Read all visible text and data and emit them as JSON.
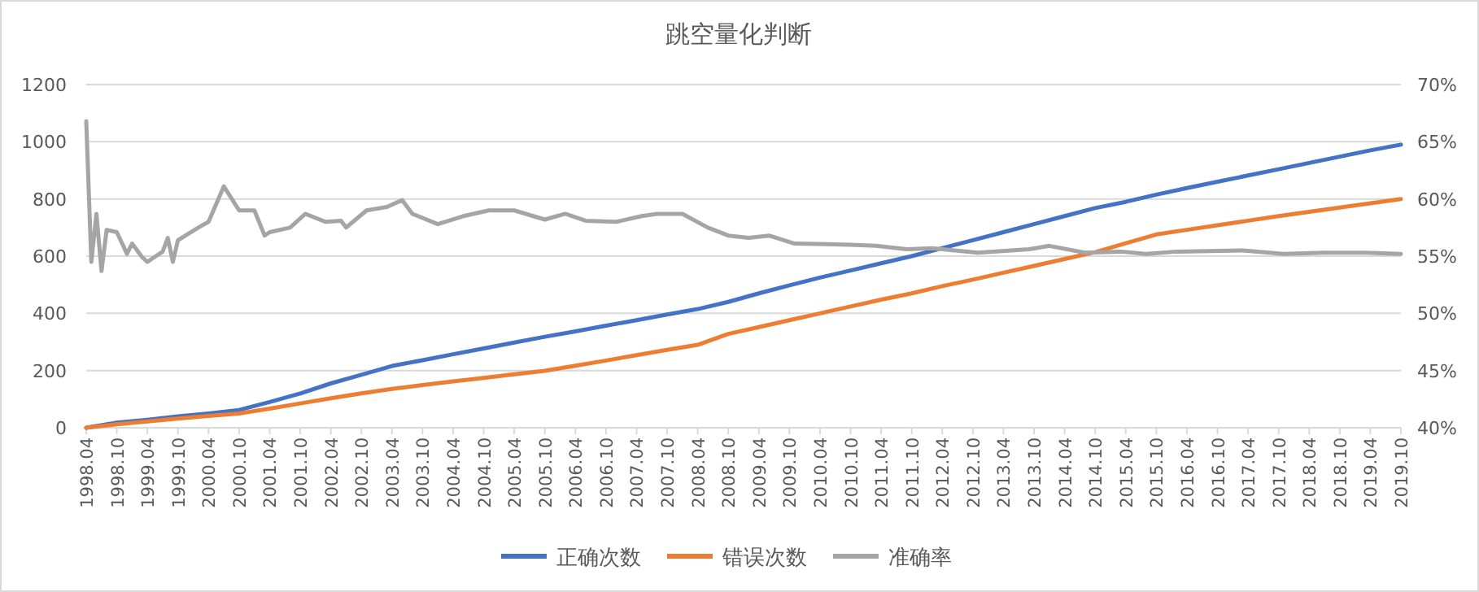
{
  "chart_data": {
    "type": "line",
    "title": "跳空量化判断",
    "x": [
      "1998-04",
      "1998-10",
      "1999-04",
      "1999-10",
      "2000-04",
      "2000-10",
      "2001-04",
      "2001-10",
      "2002-04",
      "2002-10",
      "2003-04",
      "2003-10",
      "2004-04",
      "2004-10",
      "2005-04",
      "2005-10",
      "2006-04",
      "2006-10",
      "2007-04",
      "2007-10",
      "2008-04",
      "2008-10",
      "2009-04",
      "2009-10",
      "2010-04",
      "2010-10",
      "2011-04",
      "2011-10",
      "2012-04",
      "2012-10",
      "2013-04",
      "2013-10",
      "2014-04",
      "2014-10",
      "2015-04",
      "2015-10",
      "2016-04",
      "2016-10",
      "2017-04",
      "2017-10",
      "2018-04",
      "2018-10",
      "2019-04",
      "2019-10"
    ],
    "xlim": [
      "1998-04",
      "2019-10"
    ],
    "xticks": [
      {
        "value": "1998-04",
        "label": "1998.04"
      },
      {
        "value": "1998-10",
        "label": "1998.10"
      },
      {
        "value": "1999-04",
        "label": "1999.04"
      },
      {
        "value": "1999-10",
        "label": "1999.10"
      },
      {
        "value": "2000-04",
        "label": "2000.04"
      },
      {
        "value": "2000-10",
        "label": "2000.10"
      },
      {
        "value": "2001-04",
        "label": "2001.04"
      },
      {
        "value": "2001-10",
        "label": "2001.10"
      },
      {
        "value": "2002-04",
        "label": "2002.04"
      },
      {
        "value": "2002-10",
        "label": "2002.10"
      },
      {
        "value": "2003-04",
        "label": "2003.04"
      },
      {
        "value": "2003-10",
        "label": "2003.10"
      },
      {
        "value": "2004-04",
        "label": "2004.04"
      },
      {
        "value": "2004-10",
        "label": "2004.10"
      },
      {
        "value": "2005-04",
        "label": "2005.04"
      },
      {
        "value": "2005-10",
        "label": "2005.10"
      },
      {
        "value": "2006-04",
        "label": "2006.04"
      },
      {
        "value": "2006-10",
        "label": "2006.10"
      },
      {
        "value": "2007-04",
        "label": "2007.04"
      },
      {
        "value": "2007-10",
        "label": "2007.10"
      },
      {
        "value": "2008-04",
        "label": "2008.04"
      },
      {
        "value": "2008-10",
        "label": "2008.10"
      },
      {
        "value": "2009-04",
        "label": "2009.04"
      },
      {
        "value": "2009-10",
        "label": "2009.10"
      },
      {
        "value": "2010-04",
        "label": "2010.04"
      },
      {
        "value": "2010-10",
        "label": "2010.10"
      },
      {
        "value": "2011-04",
        "label": "2011.04"
      },
      {
        "value": "2011-10",
        "label": "2011.10"
      },
      {
        "value": "2012-04",
        "label": "2012.04"
      },
      {
        "value": "2012-10",
        "label": "2012.10"
      },
      {
        "value": "2013-04",
        "label": "2013.04"
      },
      {
        "value": "2013-10",
        "label": "2013.10"
      },
      {
        "value": "2014-04",
        "label": "2014.04"
      },
      {
        "value": "2014-10",
        "label": "2014.10"
      },
      {
        "value": "2015-04",
        "label": "2015.04"
      },
      {
        "value": "2015-10",
        "label": "2015.10"
      },
      {
        "value": "2016-04",
        "label": "2016.04"
      },
      {
        "value": "2016-10",
        "label": "2016.10"
      },
      {
        "value": "2017-04",
        "label": "2017.04"
      },
      {
        "value": "2017-10",
        "label": "2017.10"
      },
      {
        "value": "2018-04",
        "label": "2018.04"
      },
      {
        "value": "2018-10",
        "label": "2018.10"
      },
      {
        "value": "2019-04",
        "label": "2019.04"
      },
      {
        "value": "2019-10",
        "label": "2019.10"
      }
    ],
    "ylim": [
      0,
      1200
    ],
    "yticks": [
      0,
      200,
      400,
      600,
      800,
      1000,
      1200
    ],
    "y2lim": [
      40,
      70
    ],
    "y2ticks": [
      {
        "value": 40,
        "label": "40%"
      },
      {
        "value": 45,
        "label": "45%"
      },
      {
        "value": 50,
        "label": "50%"
      },
      {
        "value": 55,
        "label": "55%"
      },
      {
        "value": 60,
        "label": "60%"
      },
      {
        "value": 65,
        "label": "65%"
      },
      {
        "value": 70,
        "label": "70%"
      }
    ],
    "grid": "y",
    "legend": "bottom",
    "series": [
      {
        "name": "正确次数",
        "color": "#4472c4",
        "values": [
          0,
          18,
          28,
          40,
          50,
          62,
          90,
          120,
          155,
          185,
          216,
          236,
          257,
          277,
          298,
          318,
          337,
          357,
          376,
          396,
          415,
          440,
          470,
          498,
          525,
          550,
          575,
          600,
          628,
          656,
          684,
          712,
          740,
          768,
          790,
          815,
          838,
          860,
          882,
          904,
          926,
          948,
          970,
          990
        ]
      },
      {
        "name": "错误次数",
        "color": "#ed7d31",
        "values": [
          0,
          12,
          22,
          32,
          41,
          50,
          67,
          85,
          103,
          120,
          136,
          149,
          162,
          174,
          187,
          199,
          217,
          235,
          254,
          272,
          290,
          328,
          352,
          376,
          400,
          424,
          448,
          470,
          495,
          518,
          542,
          566,
          590,
          614,
          645,
          676,
          692,
          708,
          724,
          740,
          755,
          770,
          785,
          800
        ]
      },
      {
        "name": "准确率",
        "color": "#a5a5a5",
        "axis": "y2",
        "x": [
          "1998-04",
          "1998-05",
          "1998-06",
          "1998-07",
          "1998-08",
          "1998-10",
          "1998-12",
          "1999-01",
          "1999-03",
          "1999-04",
          "1999-07",
          "1999-08",
          "1999-09",
          "1999-10",
          "2000-02",
          "2000-04",
          "2000-07",
          "2000-10",
          "2001-01",
          "2001-03",
          "2001-04",
          "2001-08",
          "2001-11",
          "2002-03",
          "2002-06",
          "2002-07",
          "2002-11",
          "2003-03",
          "2003-06",
          "2003-08",
          "2004-01",
          "2004-06",
          "2004-11",
          "2005-04",
          "2005-10",
          "2006-02",
          "2006-06",
          "2006-12",
          "2007-05",
          "2007-08",
          "2008-01",
          "2008-06",
          "2008-10",
          "2009-02",
          "2009-06",
          "2009-11",
          "2010-10",
          "2011-03",
          "2011-09",
          "2012-02",
          "2012-11",
          "2013-09",
          "2014-01",
          "2014-08",
          "2015-03",
          "2015-08",
          "2016-02",
          "2017-03",
          "2017-11",
          "2018-07",
          "2019-03",
          "2019-10"
        ],
        "values": [
          66.8,
          54.5,
          58.7,
          53.7,
          57.3,
          57.1,
          55.2,
          56.1,
          54.9,
          54.5,
          55.4,
          56.6,
          54.5,
          56.4,
          57.5,
          58.0,
          61.1,
          59.0,
          59.0,
          56.8,
          57.1,
          57.5,
          58.7,
          58.0,
          58.1,
          57.5,
          59.0,
          59.3,
          59.9,
          58.7,
          57.8,
          58.5,
          59.0,
          59.0,
          58.2,
          58.7,
          58.1,
          58.0,
          58.5,
          58.7,
          58.7,
          57.5,
          56.8,
          56.6,
          56.8,
          56.1,
          56.0,
          55.9,
          55.6,
          55.7,
          55.3,
          55.6,
          55.9,
          55.3,
          55.4,
          55.2,
          55.4,
          55.5,
          55.2,
          55.3,
          55.3,
          55.2
        ]
      }
    ]
  }
}
